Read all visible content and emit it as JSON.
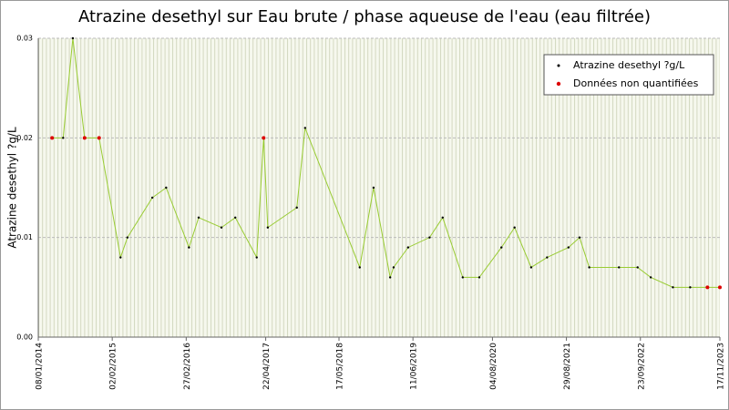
{
  "chart_data": {
    "type": "line",
    "title": "Atrazine desethyl sur Eau brute / phase aqueuse de l'eau (eau filtrée)",
    "y_label": "Atrazine desethyl ?g/L",
    "xlim": [
      2014.02,
      2023.88
    ],
    "xticks": [
      {
        "value": 2014.02,
        "label": "08/01/2014"
      },
      {
        "value": 2015.09,
        "label": "02/02/2015"
      },
      {
        "value": 2016.16,
        "label": "27/02/2016"
      },
      {
        "value": 2017.31,
        "label": "22/04/2017"
      },
      {
        "value": 2018.37,
        "label": "17/05/2018"
      },
      {
        "value": 2019.44,
        "label": "11/06/2019"
      },
      {
        "value": 2020.59,
        "label": "04/08/2020"
      },
      {
        "value": 2021.66,
        "label": "29/08/2021"
      },
      {
        "value": 2022.73,
        "label": "23/09/2022"
      },
      {
        "value": 2023.88,
        "label": "17/11/2023"
      }
    ],
    "ylim": [
      0,
      0.03
    ],
    "yticks": [
      {
        "value": 0,
        "label": "0.00"
      },
      {
        "value": 0.01,
        "label": "0.01"
      },
      {
        "value": 0.02,
        "label": "0.02"
      },
      {
        "value": 0.03,
        "label": "0.03"
      }
    ],
    "grid": true,
    "legend_position": "upper right",
    "series": [
      {
        "name": "Atrazine desethyl ?g/L",
        "color": "#99cc33",
        "marker_color": "#000000",
        "x": [
          2014.22,
          2014.38,
          2014.52,
          2014.69,
          2014.9,
          2015.21,
          2015.31,
          2015.67,
          2015.87,
          2016.2,
          2016.34,
          2016.67,
          2016.87,
          2017.18,
          2017.28,
          2017.34,
          2017.76,
          2017.88,
          2018.67,
          2018.87,
          2019.11,
          2019.16,
          2019.37,
          2019.68,
          2019.87,
          2020.16,
          2020.4,
          2020.72,
          2020.91,
          2021.15,
          2021.38,
          2021.69,
          2021.85,
          2021.99,
          2022.42,
          2022.69,
          2022.88,
          2023.2,
          2023.45,
          2023.7,
          2023.88
        ],
        "values": [
          0.02,
          0.02,
          0.03,
          0.02,
          0.02,
          0.008,
          0.01,
          0.014,
          0.015,
          0.009,
          0.012,
          0.011,
          0.012,
          0.008,
          0.02,
          0.011,
          0.013,
          0.021,
          0.007,
          0.015,
          0.006,
          0.007,
          0.009,
          0.01,
          0.012,
          0.006,
          0.006,
          0.009,
          0.011,
          0.007,
          0.008,
          0.009,
          0.01,
          0.007,
          0.007,
          0.007,
          0.006,
          0.005,
          0.005,
          0.005,
          0.005
        ]
      },
      {
        "name": "Données non quantifiées",
        "color": "#dd0000",
        "x": [
          2014.22,
          2014.69,
          2014.9,
          2017.28,
          2023.7,
          2023.88
        ],
        "values": [
          0.02,
          0.02,
          0.02,
          0.02,
          0.005,
          0.005
        ]
      }
    ]
  }
}
